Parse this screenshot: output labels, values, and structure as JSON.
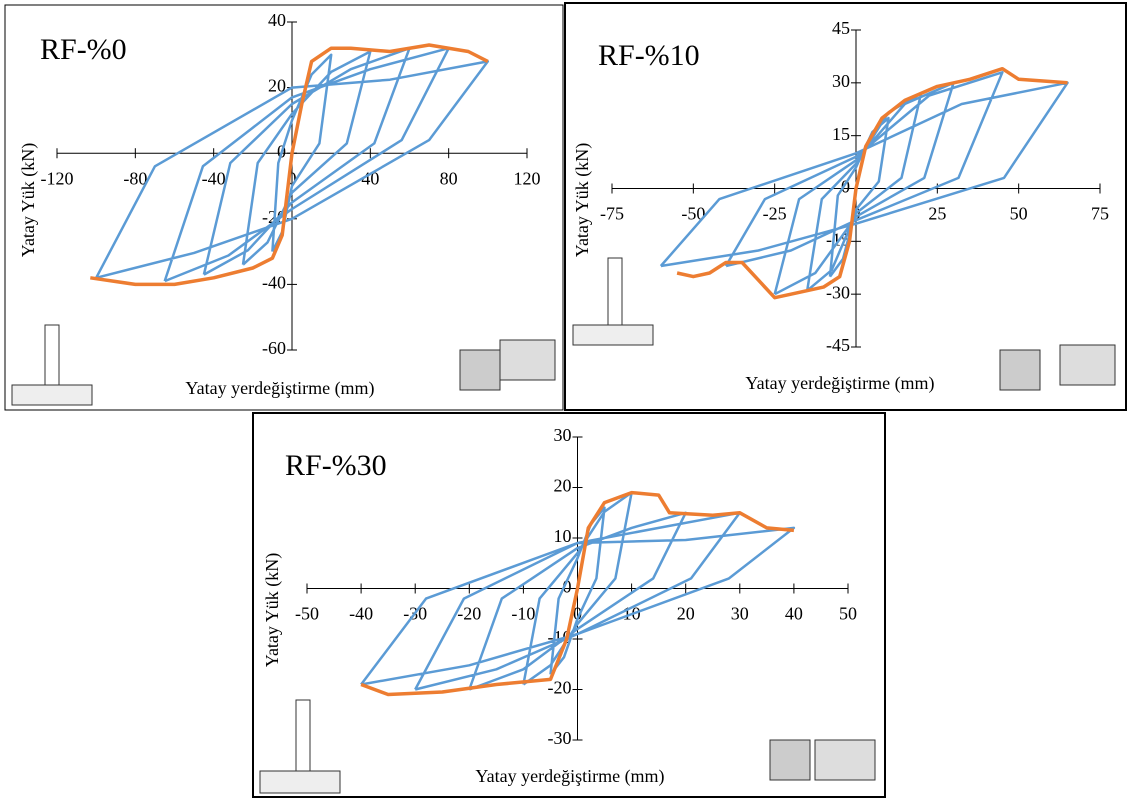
{
  "chart_data": [
    {
      "type": "line",
      "title": "RF-%0",
      "x_label": "Yatay yerdeğiştirme (mm)",
      "y_label": "Yatay Yük (kN)",
      "xlim": [
        -120,
        120
      ],
      "ylim": [
        -60,
        40
      ],
      "xticks": [
        -120,
        -80,
        -40,
        0,
        40,
        80,
        120
      ],
      "yticks": [
        -60,
        -40,
        -20,
        0,
        20,
        40
      ],
      "series": [
        {
          "color": "#5b9bd5",
          "x": [
            -10,
            -7,
            0,
            10,
            20,
            14,
            0,
            -5,
            -10,
            null,
            -25,
            -17.5,
            0,
            20,
            40,
            28,
            0,
            -12.5,
            -25,
            null,
            -45,
            -31.5,
            0,
            30,
            60,
            42,
            0,
            -22.5,
            -45,
            null,
            -65,
            -45.5,
            0,
            40,
            80,
            56,
            0,
            -32.5,
            -65,
            null,
            -100,
            -70,
            0,
            50,
            100,
            70,
            0,
            -50,
            -100
          ],
          "y": [
            -30,
            -3,
            10,
            24,
            30,
            3,
            -10,
            -24,
            -30,
            null,
            -34,
            -3,
            12,
            24.8,
            31,
            3,
            -12,
            -27.2,
            -34,
            null,
            -37,
            -3,
            15,
            25.6,
            32,
            3,
            -15,
            -29.6,
            -37,
            null,
            -39,
            -4,
            17,
            25.6,
            32,
            4,
            -17,
            -31.2,
            -39,
            null,
            -38,
            -4,
            20,
            22.4,
            28,
            4,
            -20,
            -30.4,
            -38
          ]
        },
        {
          "color": "#ed7d31",
          "x": [
            -103,
            -80,
            -60,
            -40,
            -20,
            -10,
            -5,
            -3,
            0,
            5,
            10,
            20,
            30,
            50,
            70,
            90,
            100
          ],
          "y": [
            -38,
            -40,
            -40,
            -38,
            -35,
            -32,
            -25,
            -15,
            0,
            15,
            28,
            32,
            32,
            31,
            33,
            31,
            28
          ]
        }
      ]
    },
    {
      "type": "line",
      "title": "RF-%10",
      "x_label": "Yatay yerdeğiştirme (mm)",
      "y_label": "Yatay Yük (kN)",
      "xlim": [
        -75,
        75
      ],
      "ylim": [
        -45,
        45
      ],
      "xticks": [
        -75,
        -50,
        -25,
        0,
        25,
        50,
        75
      ],
      "yticks": [
        -45,
        -30,
        -15,
        0,
        15,
        30,
        45
      ],
      "series": [
        {
          "color": "#5b9bd5",
          "x": [
            -8,
            -5.6,
            0,
            5,
            10,
            7,
            0,
            -4,
            -8,
            null,
            -15,
            -10.5,
            0,
            10,
            20,
            14,
            0,
            -7.5,
            -15,
            null,
            -25,
            -17.5,
            0,
            15,
            30,
            21,
            0,
            -12.5,
            -25,
            null,
            -40,
            -28,
            0,
            22.5,
            45,
            31.5,
            0,
            -20,
            -40,
            null,
            -60,
            -42,
            0,
            32.5,
            65,
            45.5,
            0,
            -30,
            -60
          ],
          "y": [
            -25,
            -2,
            6,
            16,
            20,
            2,
            -6,
            -20,
            -25,
            null,
            -29,
            -3,
            7,
            21.6,
            27,
            3,
            -7,
            -23.2,
            -29,
            null,
            -30,
            -3,
            8,
            24,
            30,
            3,
            -8,
            -24,
            -30,
            null,
            -22,
            -3,
            9,
            26.4,
            33,
            3,
            -9,
            -17.6,
            -22,
            null,
            -22,
            -3,
            10,
            24,
            30,
            3,
            -10,
            -17.6,
            -22
          ]
        },
        {
          "color": "#ed7d31",
          "x": [
            -55,
            -50,
            -45,
            -40,
            -35,
            -30,
            -25,
            -20,
            -10,
            -5,
            -2,
            0,
            3,
            8,
            15,
            25,
            35,
            45,
            50,
            65
          ],
          "y": [
            -24,
            -25,
            -24,
            -21,
            -21,
            -26,
            -31,
            -30,
            -28,
            -25,
            -15,
            0,
            12,
            20,
            25,
            29,
            31,
            34,
            31,
            30
          ]
        }
      ]
    },
    {
      "type": "line",
      "title": "RF-%30",
      "x_label": "Yatay yerdeğiştirme (mm)",
      "y_label": "Yatay Yük (kN)",
      "xlim": [
        -50,
        50
      ],
      "ylim": [
        -30,
        30
      ],
      "xticks": [
        -50,
        -40,
        -30,
        -20,
        -10,
        0,
        10,
        20,
        30,
        40,
        50
      ],
      "yticks": [
        -30,
        -20,
        -10,
        0,
        10,
        20,
        30
      ],
      "series": [
        {
          "color": "#5b9bd5",
          "x": [
            -5,
            -3.5,
            0,
            2.5,
            5,
            3.5,
            0,
            -2.5,
            -5,
            null,
            -10,
            -7,
            0,
            5,
            10,
            7,
            0,
            -5,
            -10,
            null,
            -20,
            -14,
            0,
            10,
            20,
            14,
            0,
            -10,
            -20,
            null,
            -30,
            -21,
            0,
            15,
            30,
            21,
            0,
            -15,
            -30,
            null,
            -40,
            -28,
            0,
            20,
            40,
            28,
            0,
            -20,
            -40
          ],
          "y": [
            -17,
            -2,
            6,
            12.8,
            16,
            2,
            -6,
            -13.6,
            -17,
            null,
            -19,
            -2,
            7,
            15.2,
            19,
            2,
            -7,
            -15.2,
            -19,
            null,
            -20,
            -2,
            8,
            12,
            15,
            2,
            -8,
            -16,
            -20,
            null,
            -20,
            -2,
            9,
            12,
            15,
            2,
            -9,
            -16,
            -20,
            null,
            -19,
            -2,
            9,
            9.6,
            12,
            2,
            -9,
            -15.2,
            -19
          ]
        },
        {
          "color": "#ed7d31",
          "x": [
            -40,
            -35,
            -25,
            -15,
            -5,
            -2,
            0,
            2,
            5,
            10,
            15,
            17,
            25,
            30,
            35,
            40
          ],
          "y": [
            -19,
            -21,
            -20.5,
            -19,
            -18,
            -10,
            0,
            12,
            17,
            19,
            18.5,
            15,
            14.5,
            15,
            12,
            11.5
          ]
        }
      ]
    }
  ]
}
